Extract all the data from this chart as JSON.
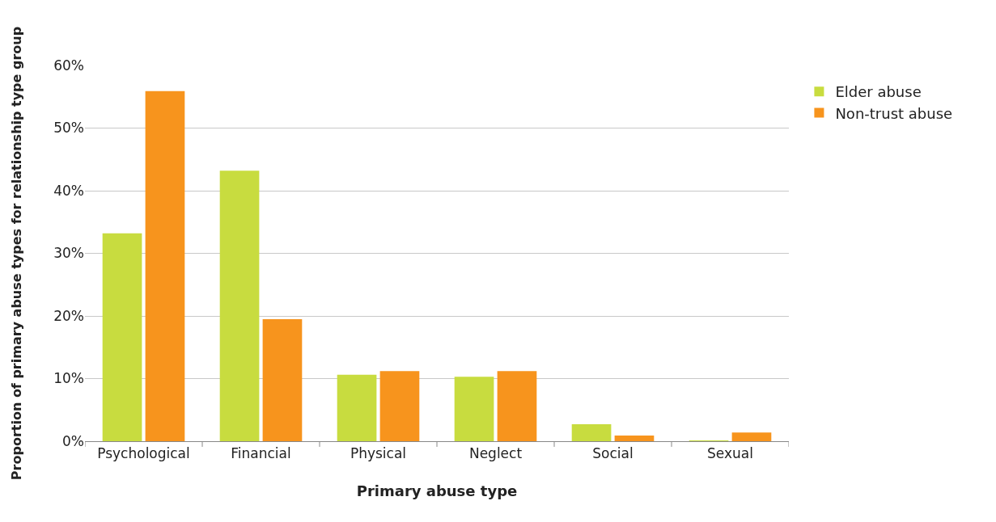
{
  "chart_data": {
    "type": "bar",
    "xlabel": "Primary abuse type",
    "ylabel": "Proportion of primary abuse types for relationship type group",
    "categories": [
      "Psychological",
      "Financial",
      "Physical",
      "Neglect",
      "Social",
      "Sexual"
    ],
    "series": [
      {
        "name": "Elder abuse",
        "color": "#c8dc3f",
        "values": [
          33.2,
          43.2,
          10.6,
          10.3,
          2.7,
          0.1
        ]
      },
      {
        "name": "Non-trust abuse",
        "color": "#f7941d",
        "values": [
          55.9,
          19.5,
          11.2,
          11.2,
          0.9,
          1.4
        ]
      }
    ],
    "ylim": [
      0,
      60
    ],
    "yticks": [
      {
        "value": 0,
        "label": "0%"
      },
      {
        "value": 10,
        "label": "10%"
      },
      {
        "value": 20,
        "label": "20%"
      },
      {
        "value": 30,
        "label": "30%"
      },
      {
        "value": 40,
        "label": "40%"
      },
      {
        "value": 50,
        "label": "50%"
      },
      {
        "value": 60,
        "label": "60%"
      }
    ],
    "grid": "y",
    "legend": "top right"
  }
}
